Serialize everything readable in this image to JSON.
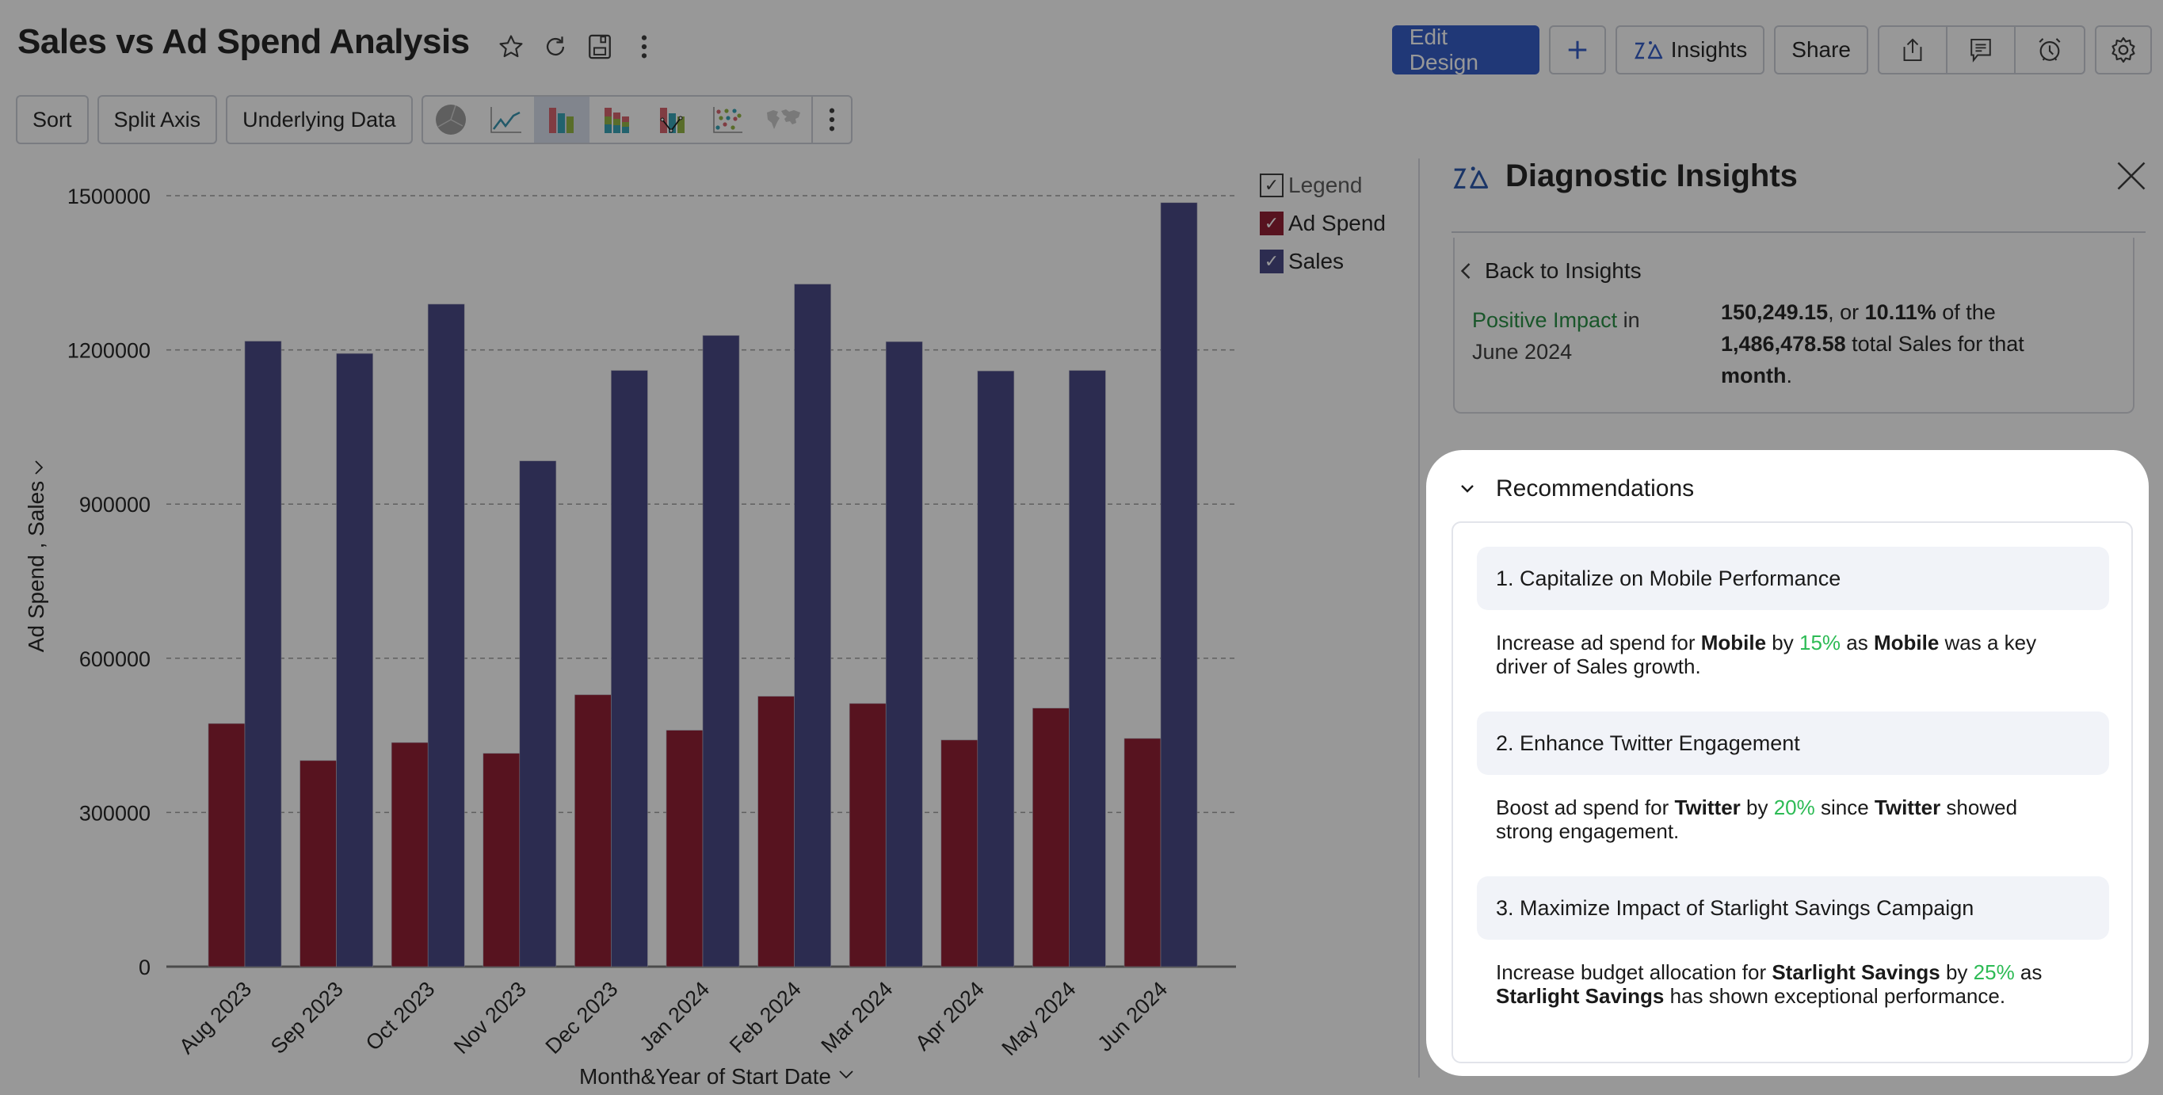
{
  "header": {
    "title": "Sales vs Ad Spend Analysis",
    "title_icons": [
      "star-icon",
      "refresh-icon",
      "save-icon",
      "more-vertical-icon"
    ],
    "buttons": {
      "edit_design": "Edit Design",
      "add": "+",
      "insights": "Insights",
      "share": "Share"
    },
    "icon_buttons": [
      "export-icon",
      "comment-icon",
      "alarm-icon",
      "settings-icon"
    ]
  },
  "toolbar": {
    "sort": "Sort",
    "split_axis": "Split Axis",
    "underlying_data": "Underlying Data",
    "chart_types": [
      "pie",
      "line",
      "bar",
      "stacked-bar",
      "bar-line-combo",
      "scatter",
      "map"
    ],
    "active_chart_type": "bar"
  },
  "legend": {
    "title": "Legend",
    "items": [
      {
        "label": "Ad Spend",
        "color": "#8b1328",
        "checked": true
      },
      {
        "label": "Sales",
        "color": "#3f3f7f",
        "checked": true
      }
    ]
  },
  "chart_data": {
    "type": "bar",
    "title": "Sales vs Ad Spend Analysis",
    "xlabel": "Month&Year of Start Date",
    "ylabel": "Ad Spend , Sales",
    "ylim": [
      0,
      1500000
    ],
    "yticks": [
      0,
      300000,
      600000,
      900000,
      1200000,
      1500000
    ],
    "grid": true,
    "legend_position": "right",
    "categories": [
      "Aug 2023",
      "Sep 2023",
      "Oct 2023",
      "Nov 2023",
      "Dec 2023",
      "Jan 2024",
      "Feb 2024",
      "Mar 2024",
      "Apr 2024",
      "May 2024",
      "Jun 2024"
    ],
    "series": [
      {
        "name": "Ad Spend",
        "color": "#8b1328",
        "values": [
          473000,
          401000,
          436000,
          415000,
          529000,
          460000,
          526000,
          512000,
          441000,
          503000,
          444000
        ]
      },
      {
        "name": "Sales",
        "color": "#3f3f7f",
        "values": [
          1217000,
          1193000,
          1289000,
          984000,
          1160000,
          1228000,
          1328000,
          1216000,
          1159000,
          1160000,
          1486479
        ]
      }
    ]
  },
  "insights_panel": {
    "title": "Diagnostic Insights",
    "back_label": "Back to Insights",
    "impact_label": "Positive Impact",
    "impact_suffix": " in",
    "impact_period": "June 2024",
    "impact_line1_bold_a": "150,249.15",
    "impact_line1_mid": ", or ",
    "impact_line1_bold_b": "10.11%",
    "impact_line1_end": " of the",
    "impact_line2_bold": "1,486,478.58",
    "impact_line2_end": " total Sales for that",
    "impact_line3_bold": "month",
    "impact_line3_end": "."
  },
  "recommendations": {
    "title": "Recommendations",
    "items": [
      {
        "heading": "1. Capitalize on Mobile Performance",
        "parts": [
          {
            "t": "Increase ad spend for "
          },
          {
            "t": "Mobile",
            "b": true
          },
          {
            "t": " by "
          },
          {
            "t": "15%",
            "pct": true
          },
          {
            "t": " as "
          },
          {
            "t": "Mobile",
            "b": true
          },
          {
            "t": " was a key driver of Sales growth."
          }
        ]
      },
      {
        "heading": "2. Enhance Twitter Engagement",
        "parts": [
          {
            "t": "Boost ad spend for "
          },
          {
            "t": "Twitter",
            "b": true
          },
          {
            "t": " by "
          },
          {
            "t": "20%",
            "pct": true
          },
          {
            "t": " since "
          },
          {
            "t": "Twitter",
            "b": true
          },
          {
            "t": " showed strong engagement."
          }
        ]
      },
      {
        "heading": "3. Maximize Impact of Starlight Savings Campaign",
        "parts": [
          {
            "t": "Increase budget allocation for "
          },
          {
            "t": "Starlight Savings",
            "b": true
          },
          {
            "t": " by "
          },
          {
            "t": "25%",
            "pct": true
          },
          {
            "t": " as "
          },
          {
            "t": "Starlight Savings",
            "b": true
          },
          {
            "t": " has shown exceptional performance."
          }
        ]
      }
    ]
  },
  "colors": {
    "accent": "#2a54c4",
    "positive": "#1e8a3b",
    "percent": "#2dbb55"
  }
}
